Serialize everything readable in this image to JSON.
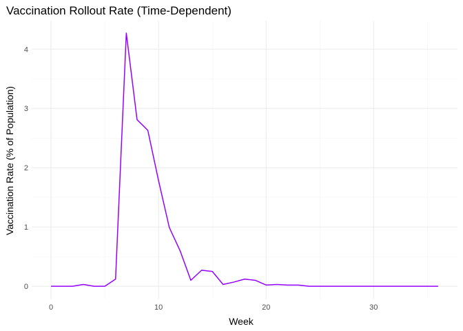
{
  "chart_data": {
    "type": "line",
    "title": "Vaccination Rollout Rate (Time-Dependent)",
    "xlabel": "Week",
    "ylabel": "Vaccination Rate (% of Population)",
    "xlim": [
      -1.8,
      37.8
    ],
    "ylim": [
      -0.22,
      4.48
    ],
    "x_ticks": [
      0,
      10,
      20,
      30
    ],
    "y_ticks": [
      0,
      1,
      2,
      3,
      4
    ],
    "x_minor_ticks": [
      5,
      15,
      25,
      35
    ],
    "y_minor_ticks": [
      0.5,
      1.5,
      2.5,
      3.5
    ],
    "grid": true,
    "legend": "none",
    "colors": {
      "line": "#9400ff"
    },
    "series": [
      {
        "x": [
          0,
          1,
          2,
          3,
          4,
          5,
          6,
          7,
          8,
          9,
          10,
          11,
          12,
          13,
          14,
          15,
          16,
          17,
          18,
          19,
          20,
          21,
          22,
          23,
          24,
          25,
          26,
          27,
          28,
          29,
          30,
          31,
          32,
          33,
          34,
          35,
          36
        ],
        "values": [
          0,
          0,
          0,
          0.03,
          0,
          0,
          0.12,
          4.27,
          2.81,
          2.63,
          1.78,
          0.99,
          0.6,
          0.1,
          0.27,
          0.25,
          0.03,
          0.07,
          0.12,
          0.1,
          0.02,
          0.03,
          0.02,
          0.02,
          0,
          0,
          0,
          0,
          0,
          0,
          0,
          0,
          0,
          0,
          0,
          0,
          0
        ]
      }
    ]
  }
}
